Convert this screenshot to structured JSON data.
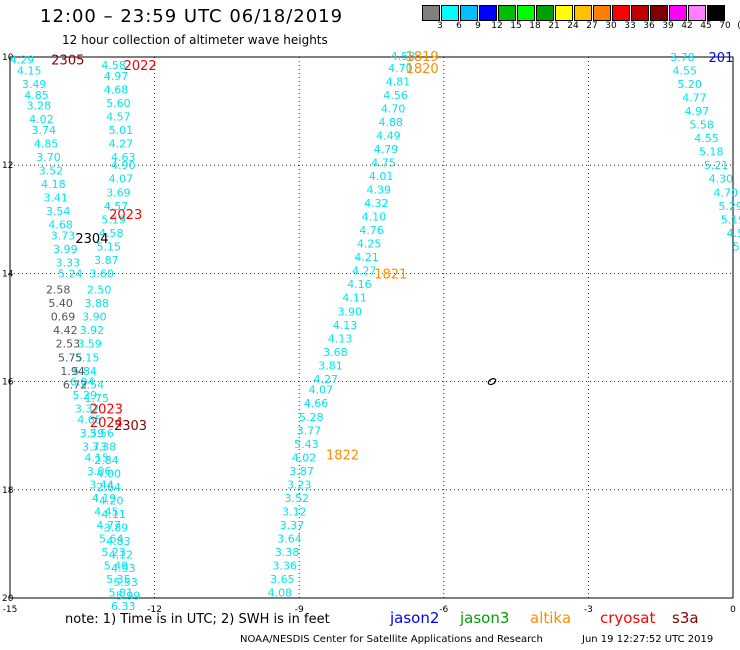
{
  "title": "12:00 – 23:59 UTC 06/18/2019",
  "subtitle": "12 hour collection of altimeter wave heights",
  "scale": {
    "labels": [
      "3",
      "6",
      "9",
      "12",
      "15",
      "18",
      "21",
      "24",
      "27",
      "30",
      "33",
      "36",
      "39",
      "42",
      "45",
      "70",
      "(ft)"
    ],
    "colors": [
      "#808080",
      "#00ffff",
      "#00bfff",
      "#0000ff",
      "#00bf00",
      "#00ff00",
      "#00a000",
      "#ffff00",
      "#ffc000",
      "#ff8000",
      "#ff0000",
      "#c00000",
      "#800000",
      "#ff00ff",
      "#ff80ff",
      "#000000"
    ]
  },
  "axes": {
    "x_ticks": [
      "-15",
      "-12",
      "-9",
      "-6",
      "-3",
      "0"
    ],
    "y_ticks": [
      "10",
      "12",
      "14",
      "16",
      "18",
      "20"
    ]
  },
  "passes": [
    {
      "label": "2305",
      "color": "#8b0000",
      "lon": -13.8,
      "lat": 10.05
    },
    {
      "label": "2022",
      "color": "#ff0000",
      "lon": -12.3,
      "lat": 10.15
    },
    {
      "label": "2023",
      "color": "#ff0000",
      "lon": -12.6,
      "lat": 12.9
    },
    {
      "label": "2304",
      "color": "#000000",
      "lon": -13.3,
      "lat": 13.35
    },
    {
      "label": "2023",
      "color": "#ff0000",
      "lon": -13.0,
      "lat": 16.5
    },
    {
      "label": "2024",
      "color": "#ff0000",
      "lon": -13.0,
      "lat": 16.75
    },
    {
      "label": "2303",
      "color": "#8b0000",
      "lon": -12.5,
      "lat": 16.8
    },
    {
      "label": "1819",
      "color": "#ff8c00",
      "lon": -6.45,
      "lat": 9.98
    },
    {
      "label": "1820",
      "color": "#ff8c00",
      "lon": -6.45,
      "lat": 10.2
    },
    {
      "label": "1821",
      "color": "#ff8c00",
      "lon": -7.1,
      "lat": 14.0
    },
    {
      "label": "1822",
      "color": "#ff8c00",
      "lon": -8.1,
      "lat": 17.35
    },
    {
      "label": "201",
      "color": "#0000ff",
      "lon": -0.25,
      "lat": 10.0
    }
  ],
  "tracks": [
    {
      "color": "#00e5ee",
      "points": [
        {
          "lon": -14.75,
          "lat": 10.05,
          "v": "4.29"
        },
        {
          "lon": -14.6,
          "lat": 10.25,
          "v": "4.15"
        },
        {
          "lon": -14.5,
          "lat": 10.5,
          "v": "3.49"
        },
        {
          "lon": -14.45,
          "lat": 10.7,
          "v": "4.85"
        },
        {
          "lon": -14.4,
          "lat": 10.9,
          "v": "3.28"
        },
        {
          "lon": -14.35,
          "lat": 11.15,
          "v": "4.02"
        },
        {
          "lon": -14.3,
          "lat": 11.35,
          "v": "3.74"
        },
        {
          "lon": -14.25,
          "lat": 11.6,
          "v": "4.85"
        },
        {
          "lon": -14.2,
          "lat": 11.85,
          "v": "3.70"
        },
        {
          "lon": -14.15,
          "lat": 12.1,
          "v": "3.52"
        },
        {
          "lon": -14.1,
          "lat": 12.35,
          "v": "4.18"
        },
        {
          "lon": -14.05,
          "lat": 12.6,
          "v": "3.41"
        },
        {
          "lon": -14.0,
          "lat": 12.85,
          "v": "3.54"
        },
        {
          "lon": -13.95,
          "lat": 13.1,
          "v": "4.68"
        },
        {
          "lon": -13.9,
          "lat": 13.3,
          "v": "3.73"
        },
        {
          "lon": -13.85,
          "lat": 13.55,
          "v": "3.99"
        },
        {
          "lon": -13.8,
          "lat": 13.8,
          "v": "3.33"
        },
        {
          "lon": -13.75,
          "lat": 14.0,
          "v": "5.24"
        },
        {
          "lon": -13.5,
          "lat": 16.0,
          "v": "6.04"
        },
        {
          "lon": -13.45,
          "lat": 16.25,
          "v": "5.29"
        },
        {
          "lon": -13.4,
          "lat": 16.5,
          "v": "3.32"
        },
        {
          "lon": -13.35,
          "lat": 16.7,
          "v": "4.65"
        },
        {
          "lon": -13.3,
          "lat": 16.95,
          "v": "3.59"
        },
        {
          "lon": -13.25,
          "lat": 17.2,
          "v": "3.73"
        },
        {
          "lon": -13.2,
          "lat": 17.4,
          "v": "4.15"
        },
        {
          "lon": -13.15,
          "lat": 17.65,
          "v": "3.06"
        },
        {
          "lon": -13.1,
          "lat": 17.9,
          "v": "3.44"
        },
        {
          "lon": -13.05,
          "lat": 18.15,
          "v": "4.19"
        },
        {
          "lon": -13.0,
          "lat": 18.4,
          "v": "4.45"
        },
        {
          "lon": -12.95,
          "lat": 18.65,
          "v": "4.77"
        },
        {
          "lon": -12.9,
          "lat": 18.9,
          "v": "5.64"
        },
        {
          "lon": -12.85,
          "lat": 19.15,
          "v": "5.23"
        },
        {
          "lon": -12.8,
          "lat": 19.4,
          "v": "5.49"
        },
        {
          "lon": -12.75,
          "lat": 19.65,
          "v": "5.35"
        },
        {
          "lon": -12.7,
          "lat": 19.9,
          "v": "5.81"
        },
        {
          "lon": -12.65,
          "lat": 20.15,
          "v": "6.33"
        }
      ]
    },
    {
      "color": "#00e5ee",
      "points": [
        {
          "lon": -12.85,
          "lat": 10.15,
          "v": "4.58"
        },
        {
          "lon": -12.8,
          "lat": 10.35,
          "v": "4.97"
        },
        {
          "lon": -12.8,
          "lat": 10.6,
          "v": "4.68"
        },
        {
          "lon": -12.75,
          "lat": 10.85,
          "v": "5.60"
        },
        {
          "lon": -12.75,
          "lat": 11.1,
          "v": "4.57"
        },
        {
          "lon": -12.7,
          "lat": 11.35,
          "v": "5.01"
        },
        {
          "lon": -12.7,
          "lat": 11.6,
          "v": "4.27"
        },
        {
          "lon": -12.65,
          "lat": 11.85,
          "v": "4.63"
        },
        {
          "lon": -12.65,
          "lat": 12.0,
          "v": "4.90"
        },
        {
          "lon": -12.7,
          "lat": 12.25,
          "v": "4.07"
        },
        {
          "lon": -12.75,
          "lat": 12.5,
          "v": "3.69"
        },
        {
          "lon": -12.8,
          "lat": 12.75,
          "v": "4.57"
        },
        {
          "lon": -12.85,
          "lat": 13.0,
          "v": "5.19"
        },
        {
          "lon": -12.9,
          "lat": 13.25,
          "v": "4.58"
        },
        {
          "lon": -12.95,
          "lat": 13.5,
          "v": "5.15"
        },
        {
          "lon": -13.0,
          "lat": 13.75,
          "v": "3.87"
        },
        {
          "lon": -13.1,
          "lat": 14.0,
          "v": "3.60"
        },
        {
          "lon": -13.15,
          "lat": 14.3,
          "v": "2.50"
        },
        {
          "lon": -13.2,
          "lat": 14.55,
          "v": "3.88"
        },
        {
          "lon": -13.25,
          "lat": 14.8,
          "v": "3.90"
        },
        {
          "lon": -13.3,
          "lat": 15.05,
          "v": "3.92"
        },
        {
          "lon": -13.35,
          "lat": 15.3,
          "v": "3.59"
        },
        {
          "lon": -13.4,
          "lat": 15.55,
          "v": "5.15"
        },
        {
          "lon": -13.45,
          "lat": 15.8,
          "v": "5.84"
        },
        {
          "lon": -13.3,
          "lat": 16.05,
          "v": "3.54"
        },
        {
          "lon": -13.2,
          "lat": 16.3,
          "v": "1.75"
        },
        {
          "lon": -13.1,
          "lat": 16.95,
          "v": "3.56"
        },
        {
          "lon": -13.05,
          "lat": 17.2,
          "v": "3.38"
        },
        {
          "lon": -13.0,
          "lat": 17.45,
          "v": "2.84"
        },
        {
          "lon": -12.95,
          "lat": 17.7,
          "v": "4.00"
        },
        {
          "lon": -12.95,
          "lat": 17.95,
          "v": "2.64"
        },
        {
          "lon": -12.9,
          "lat": 18.2,
          "v": "4.20"
        },
        {
          "lon": -12.85,
          "lat": 18.45,
          "v": "4.11"
        },
        {
          "lon": -12.8,
          "lat": 18.7,
          "v": "3.89"
        },
        {
          "lon": -12.75,
          "lat": 18.95,
          "v": "4.83"
        },
        {
          "lon": -12.7,
          "lat": 19.2,
          "v": "4.12"
        },
        {
          "lon": -12.65,
          "lat": 19.45,
          "v": "4.93"
        },
        {
          "lon": -12.6,
          "lat": 19.7,
          "v": "5.53"
        },
        {
          "lon": -12.55,
          "lat": 19.95,
          "v": "5.99"
        }
      ]
    },
    {
      "color": "#00e5ee",
      "points": [
        {
          "lon": -6.85,
          "lat": 9.98,
          "v": "4.58"
        },
        {
          "lon": -6.9,
          "lat": 10.2,
          "v": "4.70"
        },
        {
          "lon": -6.95,
          "lat": 10.45,
          "v": "4.81"
        },
        {
          "lon": -7.0,
          "lat": 10.7,
          "v": "4.56"
        },
        {
          "lon": -7.05,
          "lat": 10.95,
          "v": "4.70"
        },
        {
          "lon": -7.1,
          "lat": 11.2,
          "v": "4.88"
        },
        {
          "lon": -7.15,
          "lat": 11.45,
          "v": "4.49"
        },
        {
          "lon": -7.2,
          "lat": 11.7,
          "v": "4.79"
        },
        {
          "lon": -7.25,
          "lat": 11.95,
          "v": "4.75"
        },
        {
          "lon": -7.3,
          "lat": 12.2,
          "v": "4.01"
        },
        {
          "lon": -7.35,
          "lat": 12.45,
          "v": "4.39"
        },
        {
          "lon": -7.4,
          "lat": 12.7,
          "v": "4.32"
        },
        {
          "lon": -7.45,
          "lat": 12.95,
          "v": "4.10"
        },
        {
          "lon": -7.5,
          "lat": 13.2,
          "v": "4.76"
        },
        {
          "lon": -7.55,
          "lat": 13.45,
          "v": "4.25"
        },
        {
          "lon": -7.6,
          "lat": 13.7,
          "v": "4.21"
        },
        {
          "lon": -7.65,
          "lat": 13.95,
          "v": "4.27"
        },
        {
          "lon": -7.75,
          "lat": 14.2,
          "v": "4.16"
        },
        {
          "lon": -7.85,
          "lat": 14.45,
          "v": "4.11"
        },
        {
          "lon": -7.95,
          "lat": 14.7,
          "v": "3.90"
        },
        {
          "lon": -8.05,
          "lat": 14.95,
          "v": "4.13"
        },
        {
          "lon": -8.15,
          "lat": 15.2,
          "v": "4.13"
        },
        {
          "lon": -8.25,
          "lat": 15.45,
          "v": "3.68"
        },
        {
          "lon": -8.35,
          "lat": 15.7,
          "v": "3.81"
        },
        {
          "lon": -8.45,
          "lat": 15.95,
          "v": "4.27"
        },
        {
          "lon": -8.55,
          "lat": 16.15,
          "v": "4.07"
        },
        {
          "lon": -8.65,
          "lat": 16.4,
          "v": "4.66"
        },
        {
          "lon": -8.75,
          "lat": 16.65,
          "v": "5.28"
        },
        {
          "lon": -8.8,
          "lat": 16.9,
          "v": "3.77"
        },
        {
          "lon": -8.85,
          "lat": 17.15,
          "v": "5.43"
        },
        {
          "lon": -8.9,
          "lat": 17.4,
          "v": "4.02"
        },
        {
          "lon": -8.95,
          "lat": 17.65,
          "v": "3.87"
        },
        {
          "lon": -9.0,
          "lat": 17.9,
          "v": "3.23"
        },
        {
          "lon": -9.05,
          "lat": 18.15,
          "v": "3.52"
        },
        {
          "lon": -9.1,
          "lat": 18.4,
          "v": "3.12"
        },
        {
          "lon": -9.15,
          "lat": 18.65,
          "v": "3.37"
        },
        {
          "lon": -9.2,
          "lat": 18.9,
          "v": "3.64"
        },
        {
          "lon": -9.25,
          "lat": 19.15,
          "v": "3.38"
        },
        {
          "lon": -9.3,
          "lat": 19.4,
          "v": "3.36"
        },
        {
          "lon": -9.35,
          "lat": 19.65,
          "v": "3.65"
        },
        {
          "lon": -9.4,
          "lat": 19.9,
          "v": "4.08"
        }
      ]
    },
    {
      "color": "#00e5ee",
      "points": [
        {
          "lon": -1.05,
          "lat": 10.0,
          "v": "3.78"
        },
        {
          "lon": -1.0,
          "lat": 10.25,
          "v": "4.55"
        },
        {
          "lon": -0.9,
          "lat": 10.5,
          "v": "5.20"
        },
        {
          "lon": -0.8,
          "lat": 10.75,
          "v": "4.77"
        },
        {
          "lon": -0.75,
          "lat": 11.0,
          "v": "4.97"
        },
        {
          "lon": -0.65,
          "lat": 11.25,
          "v": "5.58"
        },
        {
          "lon": -0.55,
          "lat": 11.5,
          "v": "4.55"
        },
        {
          "lon": -0.45,
          "lat": 11.75,
          "v": "5.18"
        },
        {
          "lon": -0.35,
          "lat": 12.0,
          "v": "5.21"
        },
        {
          "lon": -0.25,
          "lat": 12.25,
          "v": "4.30"
        },
        {
          "lon": -0.15,
          "lat": 12.5,
          "v": "4.70"
        },
        {
          "lon": -0.05,
          "lat": 12.75,
          "v": "5.29"
        },
        {
          "lon": 0.0,
          "lat": 13.0,
          "v": "5.19"
        },
        {
          "lon": 0.05,
          "lat": 13.25,
          "v": "4.5"
        },
        {
          "lon": 0.1,
          "lat": 13.5,
          "v": "5."
        }
      ]
    },
    {
      "color": "#555555",
      "points": [
        {
          "lon": -14.0,
          "lat": 14.3,
          "v": "2.58"
        },
        {
          "lon": -13.95,
          "lat": 14.55,
          "v": "5.40"
        },
        {
          "lon": -13.9,
          "lat": 14.8,
          "v": "0.69"
        },
        {
          "lon": -13.85,
          "lat": 15.05,
          "v": "4.42"
        },
        {
          "lon": -13.8,
          "lat": 15.3,
          "v": "2.53"
        },
        {
          "lon": -13.75,
          "lat": 15.55,
          "v": "5.75"
        },
        {
          "lon": -13.7,
          "lat": 15.8,
          "v": "1.94"
        },
        {
          "lon": -13.65,
          "lat": 16.05,
          "v": "6.72"
        }
      ]
    }
  ],
  "shoreline": {
    "lon": -5.0,
    "lat": 16.0
  },
  "note": "note: 1) Time is in UTC; 2) SWH is in feet",
  "legend": [
    {
      "label": "jason2",
      "color": "#0000ff"
    },
    {
      "label": "jason3",
      "color": "#00a000"
    },
    {
      "label": "altika",
      "color": "#ff8c00"
    },
    {
      "label": "cryosat",
      "color": "#ff0000"
    },
    {
      "label": "s3a",
      "color": "#8b0000"
    }
  ],
  "footer": "NOAA/NESDIS Center for Satellite Applications and Research",
  "timestamp": "Jun 19 12:27:52 UTC 2019"
}
